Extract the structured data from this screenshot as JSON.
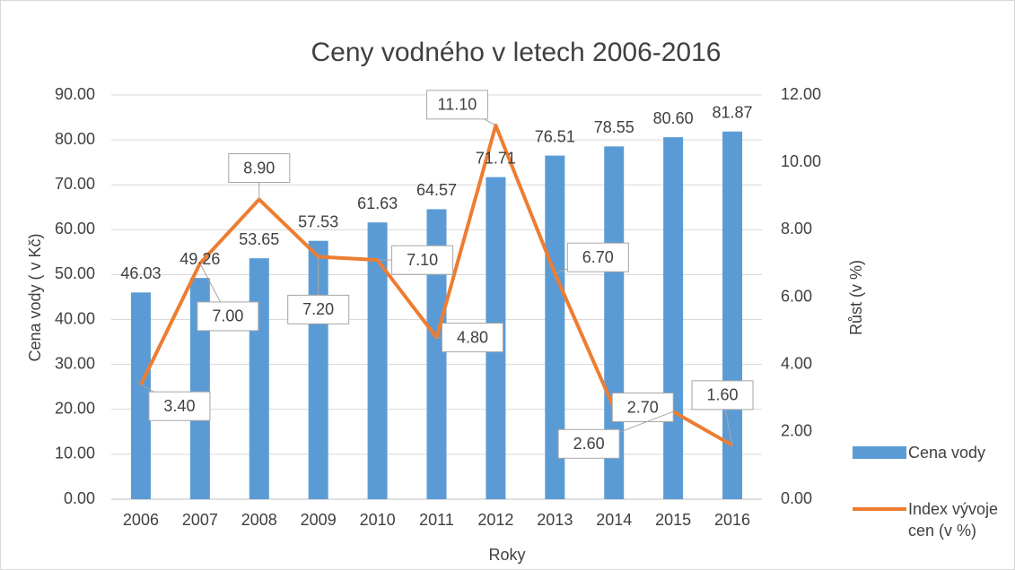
{
  "chart_data": {
    "type": "bar-line",
    "title": "Ceny vodného v letech 2006-2016",
    "x_label": "Roky",
    "y_label": "Cena vody ( v Kč)",
    "y2_label": "Růst (v %)",
    "categories": [
      "2006",
      "2007",
      "2008",
      "2009",
      "2010",
      "2011",
      "2012",
      "2013",
      "2014",
      "2015",
      "2016"
    ],
    "series": [
      {
        "name": "Cena vody",
        "type": "bar",
        "color": "#5b9bd5",
        "values": [
          46.03,
          49.26,
          53.65,
          57.53,
          61.63,
          64.57,
          71.71,
          76.51,
          78.55,
          80.6,
          81.87
        ],
        "value_labels": [
          "46.03",
          "49.26",
          "53.65",
          "57.53",
          "61.63",
          "64.57",
          "71.71",
          "76.51",
          "78.55",
          "80.60",
          "81.87"
        ]
      },
      {
        "name": "Index vývoje cen (v %)",
        "type": "line",
        "axis": "y2",
        "color": "#ed7d31",
        "values": [
          3.4,
          7,
          8.9,
          7.2,
          7.1,
          4.8,
          11.1,
          6.7,
          2.7,
          2.6,
          1.6
        ],
        "value_labels": [
          "3.40",
          "7.00",
          "8.90",
          "7.20",
          "7.10",
          "4.80",
          "11.10",
          "6.70",
          "2.70",
          "2.60",
          "1.60"
        ]
      }
    ],
    "ylim": [
      0,
      90
    ],
    "yticks": [
      {
        "value": 0,
        "label": "0.00"
      },
      {
        "value": 10,
        "label": "10.00"
      },
      {
        "value": 20,
        "label": "20.00"
      },
      {
        "value": 30,
        "label": "30.00"
      },
      {
        "value": 40,
        "label": "40.00"
      },
      {
        "value": 50,
        "label": "50.00"
      },
      {
        "value": 60,
        "label": "60.00"
      },
      {
        "value": 70,
        "label": "70.00"
      },
      {
        "value": 80,
        "label": "80.00"
      },
      {
        "value": 90,
        "label": "90.00"
      }
    ],
    "y2lim": [
      0,
      12
    ],
    "y2ticks": [
      {
        "value": 0,
        "label": "0.00"
      },
      {
        "value": 2,
        "label": "2.00"
      },
      {
        "value": 4,
        "label": "4.00"
      },
      {
        "value": 6,
        "label": "6.00"
      },
      {
        "value": 8,
        "label": "8.00"
      },
      {
        "value": 10,
        "label": "10.00"
      },
      {
        "value": 12,
        "label": "12.00"
      }
    ],
    "grid": true,
    "legend": "right"
  }
}
